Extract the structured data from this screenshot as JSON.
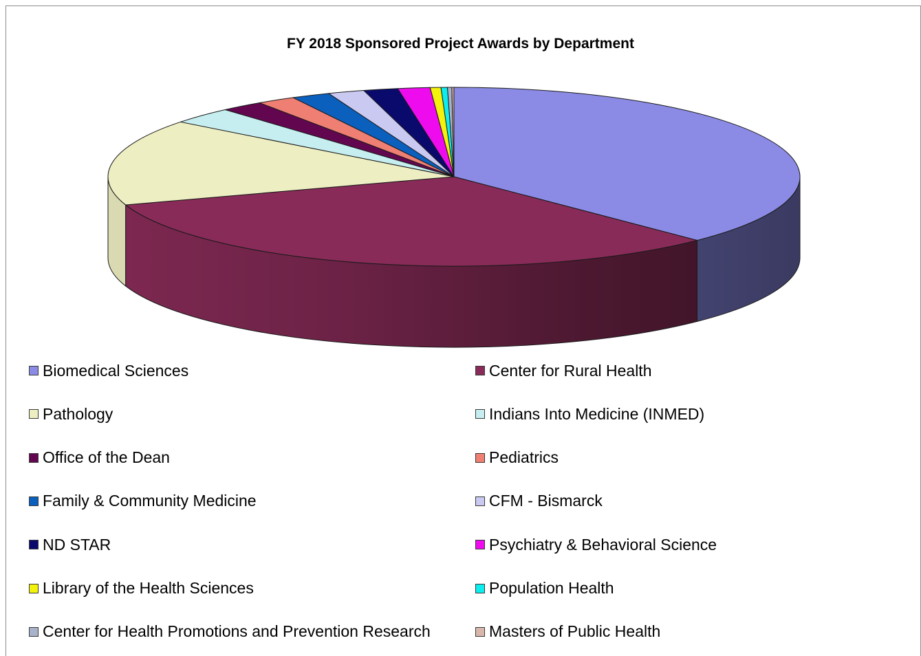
{
  "chart_data": {
    "type": "pie",
    "title": "FY 2018 Sponsored Project Awards by Department",
    "legend_position": "bottom",
    "slices": [
      {
        "label": "Biomedical Sciences",
        "value": 37.6,
        "color": "#8b8be6"
      },
      {
        "label": "Center for Rural Health",
        "value": 32.3,
        "color": "#892b58"
      },
      {
        "label": "Pathology",
        "value": 15.6,
        "color": "#eeeec3"
      },
      {
        "label": "Indians Into Medicine (INMED)",
        "value": 3.0,
        "color": "#c6eef0"
      },
      {
        "label": "Office of the Dean",
        "value": 2.0,
        "color": "#62074f"
      },
      {
        "label": "Pediatrics",
        "value": 1.8,
        "color": "#ee7f72"
      },
      {
        "label": "Family & Community Medicine",
        "value": 1.8,
        "color": "#0b5fbd"
      },
      {
        "label": "CFM - Bismarck",
        "value": 1.7,
        "color": "#c9c9f2"
      },
      {
        "label": "ND STAR",
        "value": 1.6,
        "color": "#0a0a6c"
      },
      {
        "label": "Psychiatry & Behavioral Science",
        "value": 1.5,
        "color": "#ee0cee"
      },
      {
        "label": "Library of the Health Sciences",
        "value": 0.5,
        "color": "#f2f20c"
      },
      {
        "label": "Population Health",
        "value": 0.3,
        "color": "#0ceeee"
      },
      {
        "label": "Center for Health Promotions and Prevention Research",
        "value": 0.2,
        "color": "#a8b2c8"
      },
      {
        "label": "Masters of Public Health",
        "value": 0.1,
        "color": "#d8b6ac"
      }
    ]
  }
}
